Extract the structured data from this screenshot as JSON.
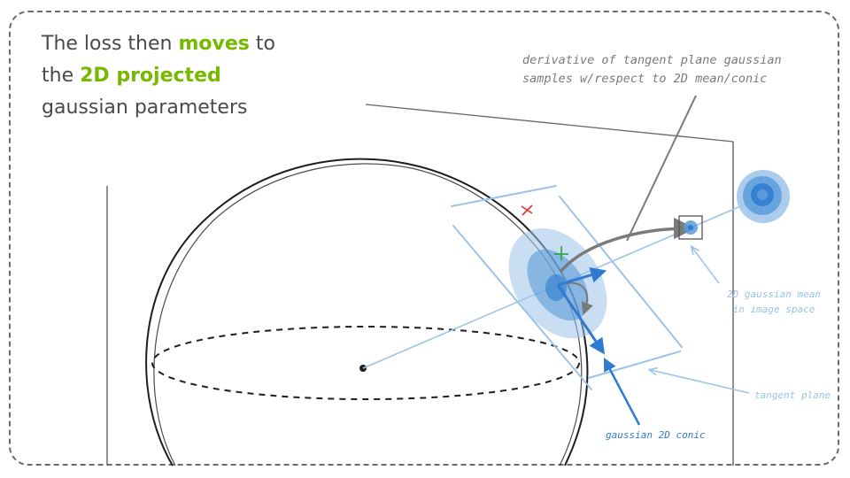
{
  "slide": {
    "title": {
      "part1": "The loss then ",
      "highlight1": "moves",
      "part2": " to",
      "part3": "the ",
      "highlight2": "2D projected",
      "part4": "gaussian parameters"
    },
    "annotations": {
      "derivative_line1": "derivative of tangent plane gaussian",
      "derivative_line2": "samples w/respect to 2D mean/conic",
      "mean_line1": "2D gaussian mean",
      "mean_line2": "in image space",
      "tangent_plane": "tangent plane",
      "conic": "gaussian 2D conic"
    },
    "colors": {
      "highlight": "#76b900",
      "sketch": "#1e1e1e",
      "light_blue": "#9cc3e8",
      "mid_blue": "#5b9bd9",
      "strong_blue": "#2f7bd1",
      "gray": "#7a7a7a",
      "red_marker": "#e03131",
      "green_marker": "#2f9e44"
    }
  }
}
